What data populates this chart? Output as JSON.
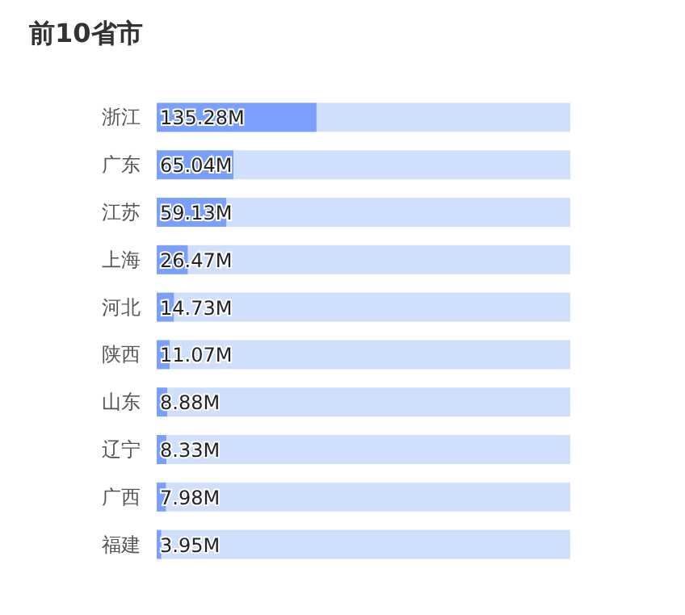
{
  "chart_data": {
    "type": "bar",
    "orientation": "horizontal",
    "stacked": true,
    "title": "前10省市",
    "categories": [
      "浙江",
      "广东",
      "江苏",
      "上海",
      "河北",
      "陕西",
      "山东",
      "辽宁",
      "广西",
      "福建"
    ],
    "series": [
      {
        "color": "#7b9ffc",
        "values": [
          135.28,
          65.04,
          59.13,
          26.47,
          14.73,
          11.07,
          8.88,
          8.33,
          7.98,
          3.95
        ],
        "value_labels": [
          "135.28M",
          "65.04M",
          "59.13M",
          "26.47M",
          "14.73M",
          "11.07M",
          "8.88M",
          "8.33M",
          "7.98M",
          "3.95M"
        ]
      },
      {
        "color": "#d0e0fc",
        "values": [
          214.72,
          284.96,
          290.87,
          323.53,
          335.27,
          338.93,
          341.12,
          341.67,
          342.02,
          346.05
        ]
      }
    ],
    "xlim": [
      0,
      350
    ],
    "tick_labels": "y"
  }
}
